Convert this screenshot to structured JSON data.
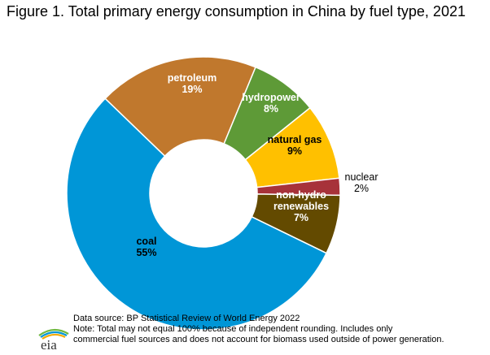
{
  "chart_data": {
    "type": "pie",
    "title": "Figure 1. Total primary energy consumption in China by fuel type, 2021",
    "series": [
      {
        "name": "petroleum",
        "value": 19,
        "value_label": "19%",
        "color": "#c0782d"
      },
      {
        "name": "hydropower",
        "value": 8,
        "value_label": "8%",
        "color": "#5e9a37"
      },
      {
        "name": "natural gas",
        "value": 9,
        "value_label": "9%",
        "color": "#ffc000"
      },
      {
        "name": "nuclear",
        "value": 2,
        "value_label": "2%",
        "color": "#a7323a"
      },
      {
        "name": "non-hydro renewables",
        "value": 7,
        "value_label": "7%",
        "color": "#634a00"
      },
      {
        "name": "coal",
        "value": 55,
        "value_label": "55%",
        "color": "#0096d7"
      }
    ]
  },
  "footer": {
    "source": "Data source: BP Statistical Review of World Energy 2022",
    "note_line1": "Note: Total may not equal 100% because of independent rounding. Includes only",
    "note_line2": "commercial fuel sources and does not account for biomass used outside of power generation."
  },
  "logo": {
    "text": "eia",
    "icon": "eia-logo-icon"
  }
}
